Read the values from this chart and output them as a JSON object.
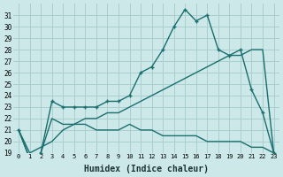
{
  "xlabel": "Humidex (Indice chaleur)",
  "bg_color": "#cce8e8",
  "grid_color": "#aacfcf",
  "line_color": "#1a6e6e",
  "x_values": [
    0,
    1,
    2,
    3,
    4,
    5,
    6,
    7,
    8,
    9,
    10,
    11,
    12,
    13,
    14,
    15,
    16,
    17,
    18,
    19,
    20,
    21,
    22,
    23
  ],
  "line1_y": [
    21,
    18.5,
    19,
    23.5,
    23,
    23,
    23,
    23,
    23.5,
    23.5,
    24,
    26,
    26.5,
    28,
    30,
    31.5,
    30.5,
    31,
    28,
    27.5,
    28,
    24.5,
    22.5,
    19
  ],
  "line2_y": [
    21,
    18.5,
    19,
    22,
    21.5,
    21.5,
    21.5,
    21,
    21,
    21,
    21.5,
    21,
    21,
    20.5,
    20.5,
    20.5,
    20.5,
    20,
    20,
    20,
    20,
    19.5,
    19.5,
    19
  ],
  "line3_y": [
    21,
    19,
    19.5,
    20,
    21,
    21.5,
    22,
    22,
    22.5,
    22.5,
    23,
    23.5,
    24,
    24.5,
    25,
    25.5,
    26,
    26.5,
    27,
    27.5,
    27.5,
    28,
    28,
    19
  ],
  "ylim": [
    19,
    32
  ],
  "yticks": [
    19,
    20,
    21,
    22,
    23,
    24,
    25,
    26,
    27,
    28,
    29,
    30,
    31
  ],
  "xticks": [
    0,
    1,
    2,
    3,
    4,
    5,
    6,
    7,
    8,
    9,
    10,
    11,
    12,
    13,
    14,
    15,
    16,
    17,
    18,
    19,
    20,
    21,
    22,
    23
  ]
}
